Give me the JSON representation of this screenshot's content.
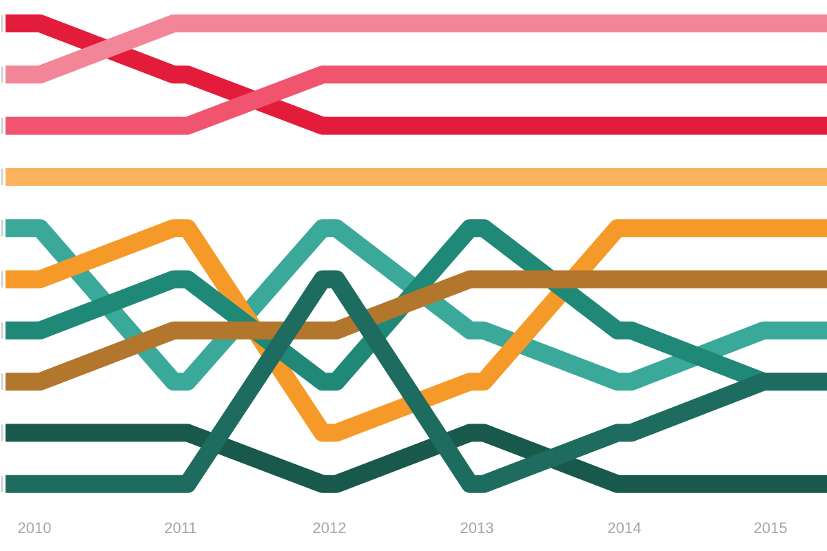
{
  "chart_data": {
    "type": "line",
    "variant": "bump",
    "x": [
      "2010",
      "2011",
      "2012",
      "2013",
      "2014",
      "2015"
    ],
    "ylim": [
      0.5,
      10.5
    ],
    "y_reversed": true,
    "grid": false,
    "legend": "none",
    "series": [
      {
        "color": "#e31c3c",
        "ranks": [
          1,
          2,
          3,
          3,
          3,
          3
        ]
      },
      {
        "color": "#f38599",
        "ranks": [
          2,
          1,
          1,
          1,
          1,
          1
        ]
      },
      {
        "color": "#f0546f",
        "ranks": [
          3,
          3,
          2,
          2,
          2,
          2
        ]
      },
      {
        "color": "#fbb35d",
        "ranks": [
          4,
          4,
          4,
          4,
          4,
          4
        ]
      },
      {
        "color": "#3aa99a",
        "ranks": [
          5,
          8,
          5,
          7,
          8,
          7
        ]
      },
      {
        "color": "#f59a28",
        "ranks": [
          6,
          5,
          9,
          8,
          5,
          5
        ]
      },
      {
        "color": "#208877",
        "ranks": [
          7,
          6,
          8,
          5,
          7,
          8
        ]
      },
      {
        "color": "#b3762d",
        "ranks": [
          8,
          7,
          7,
          6,
          6,
          6
        ]
      },
      {
        "color": "#18594c",
        "ranks": [
          9,
          9,
          10,
          9,
          10,
          10
        ]
      },
      {
        "color": "#1e6b5f",
        "ranks": [
          10,
          10,
          6,
          10,
          9,
          8
        ]
      }
    ]
  }
}
